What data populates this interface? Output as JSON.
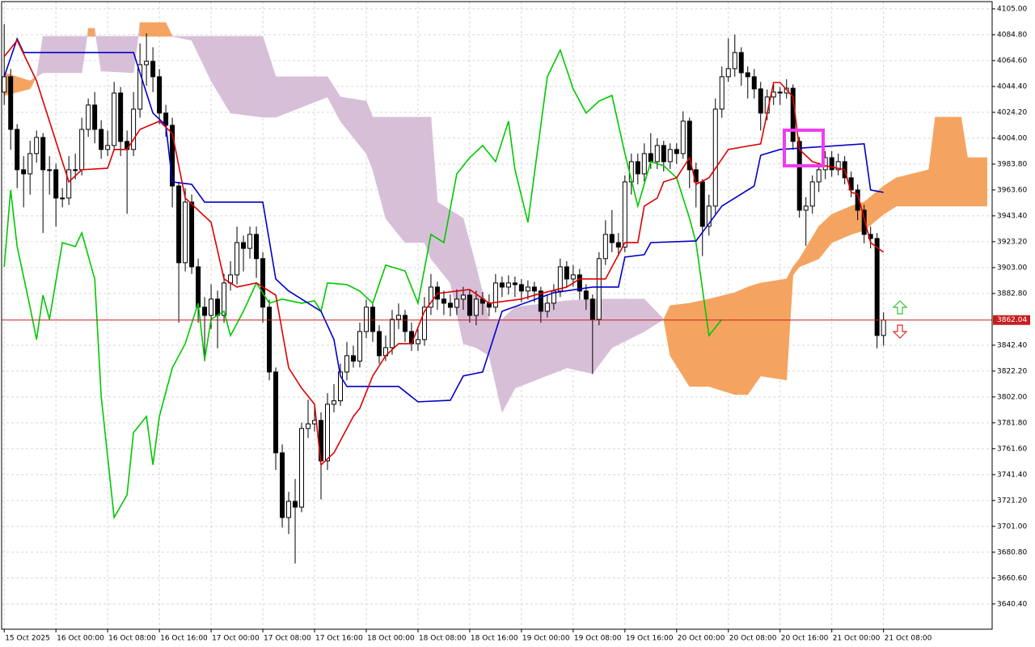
{
  "chart_data": {
    "type": "candlestick",
    "xlim": [
      -0.4,
      152.8
    ],
    "ylim": [
      3620.7,
      4111.9
    ],
    "grid": true,
    "bull_color": "#ffffff",
    "bear_color": "#000000",
    "xticks": [
      {
        "value": 0,
        "label": "15 Oct 2025"
      },
      {
        "value": 8,
        "label": "16 Oct 00:00"
      },
      {
        "value": 16,
        "label": "16 Oct 08:00"
      },
      {
        "value": 24,
        "label": "16 Oct 16:00"
      },
      {
        "value": 32,
        "label": "17 Oct 00:00"
      },
      {
        "value": 40,
        "label": "17 Oct 08:00"
      },
      {
        "value": 48,
        "label": "17 Oct 16:00"
      },
      {
        "value": 56,
        "label": "18 Oct 00:00"
      },
      {
        "value": 64,
        "label": "18 Oct 08:00"
      },
      {
        "value": 72,
        "label": "18 Oct 16:00"
      },
      {
        "value": 80,
        "label": "19 Oct 00:00"
      },
      {
        "value": 88,
        "label": "19 Oct 08:00"
      },
      {
        "value": 96,
        "label": "19 Oct 16:00"
      },
      {
        "value": 104,
        "label": "20 Oct 00:00"
      },
      {
        "value": 112,
        "label": "20 Oct 08:00"
      },
      {
        "value": 120,
        "label": "20 Oct 16:00"
      },
      {
        "value": 128,
        "label": "21 Oct 00:00"
      },
      {
        "value": 136,
        "label": "21 Oct 08:00"
      }
    ],
    "yticks": [
      {
        "value": 4105,
        "label": "4105.00"
      },
      {
        "value": 4084.8,
        "label": "4084.80"
      },
      {
        "value": 4064.6,
        "label": "4064.60"
      },
      {
        "value": 4044.4,
        "label": "4044.40"
      },
      {
        "value": 4024.2,
        "label": "4024.20"
      },
      {
        "value": 4004,
        "label": "4004.00"
      },
      {
        "value": 3983.8,
        "label": "3983.80"
      },
      {
        "value": 3963.6,
        "label": "3963.60"
      },
      {
        "value": 3943.4,
        "label": "3943.40"
      },
      {
        "value": 3923.2,
        "label": "3923.20"
      },
      {
        "value": 3903,
        "label": "3903.00"
      },
      {
        "value": 3882.8,
        "label": "3882.80"
      },
      {
        "value": 3842.4,
        "label": "3842.40"
      },
      {
        "value": 3822.2,
        "label": "3822.20"
      },
      {
        "value": 3802,
        "label": "3802.00"
      },
      {
        "value": 3781.8,
        "label": "3781.80"
      },
      {
        "value": 3761.6,
        "label": "3761.60"
      },
      {
        "value": 3741.4,
        "label": "3741.40"
      },
      {
        "value": 3721.2,
        "label": "3721.20"
      },
      {
        "value": 3701,
        "label": "3701.00"
      },
      {
        "value": 3680.8,
        "label": "3680.80"
      },
      {
        "value": 3660.6,
        "label": "3660.60"
      },
      {
        "value": 3640.4,
        "label": "3640.40"
      }
    ],
    "last_price": 3862.04,
    "last_price_color": "#c81e1e",
    "candles": {
      "open": [
        4040.0,
        4052.0,
        4010.9,
        3979.4,
        3976.2,
        3992.0,
        4004.6,
        3979.4,
        3979.4,
        3957.3,
        3957.3,
        3979.4,
        3979.4,
        4010.9,
        4029.9,
        4010.9,
        3995.2,
        3998.3,
        4039.3,
        4001.5,
        3995.2,
        4026.7,
        4061.4,
        4064.0,
        4052.0,
        4023.6,
        4014.1,
        3966.7,
        3906.8,
        3954.1,
        3903.6,
        3872.1,
        3865.7,
        3878.4,
        3865.7,
        3891.0,
        3897.3,
        3922.5,
        3918.0,
        3928.9,
        3910.0,
        3872.1,
        3821.5,
        3758.4,
        3707.9,
        3720.5,
        3716.0,
        3777.4,
        3781.0,
        3783.7,
        3752.1,
        3796.3,
        3799.0,
        3821.5,
        3834.2,
        3830.0,
        3853.1,
        3872.1,
        3853.1,
        3834.2,
        3840.5,
        3862.6,
        3865.7,
        3853.1,
        3843.6,
        3846.8,
        3872.1,
        3887.8,
        3878.4,
        3875.2,
        3872.0,
        3878.4,
        3881.5,
        3865.7,
        3878.4,
        3875.2,
        3872.1,
        3891.0,
        3887.8,
        3891.0,
        3889.7,
        3884.7,
        3887.8,
        3884.7,
        3868.9,
        3875.2,
        3884.7,
        3903.6,
        3894.1,
        3897.3,
        3884.7,
        3878.4,
        3862.6,
        3910.0,
        3928.9,
        3922.5,
        3919.0,
        3969.9,
        3985.7,
        3976.2,
        3992.0,
        3985.7,
        3998.3,
        3985.7,
        3995.2,
        3992.0,
        4017.3,
        3979.4,
        3969.9,
        3935.2,
        3951.0,
        4026.7,
        4052.0,
        4058.3,
        4070.9,
        4055.1,
        4052.0,
        4042.5,
        4023.6,
        4036.2,
        4040.0,
        4039.3,
        4043.0,
        4001.5,
        3947.8,
        3951.0,
        3969.9,
        3979.4,
        3988.8,
        3979.4,
        3985.7,
        3973.1,
        3963.6,
        3947.8,
        3928.9,
        3925.7,
        3850.0
      ],
      "high": [
        4093,
        4058,
        4015,
        3990,
        4002,
        4010,
        4008,
        3990,
        3984,
        3965,
        3990,
        3992,
        4020,
        4035,
        4040,
        4018,
        4010,
        4048,
        4044,
        4010,
        4040,
        4078,
        4086,
        4075,
        4058,
        4030,
        4020,
        3970,
        3965,
        3960,
        3910,
        3880,
        3890,
        3885,
        3898,
        3908,
        3935,
        3928,
        3935,
        3935,
        3915,
        3878,
        3825,
        3765,
        3728,
        3738,
        3782,
        3800,
        3795,
        3790,
        3805,
        3812,
        3828,
        3845,
        3842,
        3860,
        3878,
        3876,
        3858,
        3850,
        3870,
        3875,
        3870,
        3860,
        3855,
        3880,
        3898,
        3892,
        3885,
        3882,
        3886,
        3888,
        3886,
        3885,
        3884,
        3882,
        3898,
        3896,
        3897,
        3896,
        3894,
        3893,
        3892,
        3888,
        3882,
        3890,
        3910,
        3908,
        3905,
        3902,
        3890,
        3882,
        3915,
        3940,
        3948,
        3930,
        3975,
        3992,
        3992,
        4000,
        4008,
        4004,
        4002,
        4000,
        4000,
        4025,
        4020,
        3985,
        3972,
        3960,
        4035,
        4060,
        4082,
        4085,
        4075,
        4060,
        4058,
        4048,
        4042,
        4046,
        4044,
        4050,
        4046,
        4005,
        3958,
        3975,
        3985,
        3994,
        3994,
        3992,
        3990,
        3978,
        3968,
        3952,
        3935,
        3930,
        3868
      ],
      "low": [
        4030,
        3995,
        3965,
        3950,
        3960,
        3985,
        3930,
        3960,
        3935,
        3950,
        3952,
        3972,
        3975,
        4005,
        4000,
        3988,
        3990,
        3994,
        3990,
        3945,
        3990,
        4020,
        4045,
        4040,
        4015,
        4005,
        3950,
        3860,
        3900,
        3898,
        3860,
        3830,
        3855,
        3840,
        3860,
        3885,
        3890,
        3900,
        3910,
        3895,
        3860,
        3815,
        3745,
        3700,
        3695,
        3672,
        3712,
        3770,
        3775,
        3722,
        3745,
        3790,
        3795,
        3815,
        3825,
        3825,
        3848,
        3845,
        3828,
        3830,
        3835,
        3855,
        3845,
        3838,
        3838,
        3842,
        3866,
        3870,
        3866,
        3865,
        3866,
        3870,
        3860,
        3858,
        3866,
        3865,
        3868,
        3880,
        3882,
        3880,
        3876,
        3878,
        3876,
        3860,
        3864,
        3870,
        3880,
        3888,
        3888,
        3878,
        3870,
        3820,
        3858,
        3905,
        3915,
        3912,
        3915,
        3960,
        3968,
        3970,
        3980,
        3980,
        3978,
        3980,
        3984,
        3988,
        3965,
        3950,
        3912,
        3928,
        3945,
        4020,
        4048,
        4052,
        4045,
        4035,
        4035,
        4010,
        4018,
        4030,
        4030,
        4035,
        3995,
        3942,
        3920,
        3945,
        3962,
        3972,
        3974,
        3975,
        3968,
        3958,
        3940,
        3922,
        3918,
        3840,
        3842
      ],
      "close": [
        4052.0,
        4010.9,
        3979.4,
        3976.2,
        3992.0,
        4004.6,
        3979.4,
        3979.4,
        3957.3,
        3957.3,
        3979.4,
        3979.4,
        4010.9,
        4029.9,
        4010.9,
        3995.2,
        3998.3,
        4039.3,
        4001.5,
        3995.2,
        4026.7,
        4061.4,
        4064.0,
        4052.0,
        4023.6,
        4014.1,
        3966.7,
        3906.8,
        3954.1,
        3903.6,
        3872.1,
        3865.7,
        3878.4,
        3865.7,
        3891.0,
        3897.3,
        3922.5,
        3918.0,
        3928.9,
        3910.0,
        3872.1,
        3821.5,
        3758.4,
        3707.9,
        3720.5,
        3716.0,
        3777.4,
        3781.0,
        3783.7,
        3752.1,
        3796.3,
        3799.0,
        3821.5,
        3834.2,
        3830.0,
        3853.1,
        3872.1,
        3853.1,
        3834.2,
        3840.5,
        3862.6,
        3865.7,
        3853.1,
        3843.6,
        3846.8,
        3872.1,
        3887.8,
        3878.4,
        3875.2,
        3872.0,
        3878.4,
        3881.5,
        3865.7,
        3878.4,
        3875.2,
        3872.1,
        3891.0,
        3887.8,
        3891.0,
        3889.7,
        3884.7,
        3887.8,
        3884.7,
        3868.9,
        3875.2,
        3884.7,
        3903.6,
        3894.1,
        3897.3,
        3884.7,
        3878.4,
        3862.6,
        3910.0,
        3928.9,
        3922.5,
        3919.0,
        3969.9,
        3985.7,
        3976.2,
        3992.0,
        3985.7,
        3998.3,
        3985.7,
        3995.2,
        3992.0,
        4017.3,
        3979.4,
        3969.9,
        3935.2,
        3951.0,
        4026.7,
        4052.0,
        4058.3,
        4070.9,
        4055.1,
        4052.0,
        4042.5,
        4023.6,
        4036.2,
        4040.0,
        4039.3,
        4043.0,
        4001.5,
        3947.8,
        3951.0,
        3969.9,
        3979.4,
        3988.8,
        3979.4,
        3985.7,
        3973.1,
        3963.6,
        3947.8,
        3928.9,
        3925.7,
        3850.0,
        3862.04
      ]
    },
    "cloud": {
      "color_a": "#f4a460",
      "color_b": "#d8bfd8",
      "x": [
        0,
        4,
        5,
        6,
        12,
        13,
        14,
        15,
        20,
        21,
        25,
        26,
        29,
        32,
        35,
        40,
        42,
        50,
        52,
        56,
        57,
        59,
        62,
        65,
        66,
        67,
        69,
        71,
        73,
        75,
        77,
        79,
        87,
        91,
        94,
        99,
        102,
        103,
        106,
        109,
        113,
        115,
        117,
        121,
        122,
        123,
        126,
        128,
        131,
        133,
        136,
        138,
        143,
        144,
        148,
        149,
        152
      ],
      "span_a": [
        4055.1,
        4048.8,
        4052.0,
        4055.1,
        4055.1,
        4089.8,
        4089.8,
        4056.4,
        4055.1,
        4094.3,
        4094.3,
        4083.5,
        4080.4,
        4048.8,
        4023.6,
        4020.4,
        4020.4,
        4036.2,
        4017.3,
        3992.0,
        3979.4,
        3941.5,
        3922.5,
        3922.5,
        3909.9,
        3903.6,
        3891.0,
        3843.6,
        3840.5,
        3834.2,
        3790.0,
        3808.9,
        3824.7,
        3820.3,
        3840.5,
        3853.1,
        3862.6,
        3873.3,
        3875.2,
        3878.4,
        3883.4,
        3887.8,
        3891.0,
        3894.1,
        3903.6,
        3909.9,
        3935.2,
        3944.6,
        3951.0,
        3954.1,
        3966.7,
        3973.1,
        3979.4,
        4020.4,
        4020.4,
        3988.8,
        3988.8
      ],
      "span_b": [
        4037.4,
        4042.5,
        4052.0,
        4083.5,
        4083.5,
        4083.5,
        4083.5,
        4083.5,
        4083.5,
        4083.5,
        4083.5,
        4083.5,
        4083.5,
        4083.5,
        4083.5,
        4083.5,
        4052.0,
        4052.0,
        4036.2,
        4033.0,
        4020.4,
        4020.4,
        4020.4,
        4020.4,
        4020.4,
        3954.1,
        3947.8,
        3941.5,
        3903.6,
        3862.6,
        3862.6,
        3872.1,
        3877.1,
        3878.4,
        3878.4,
        3878.4,
        3862.6,
        3834.2,
        3810.2,
        3810.2,
        3803.9,
        3803.9,
        3818.4,
        3815.2,
        3897.3,
        3903.6,
        3909.9,
        3922.5,
        3928.9,
        3932.0,
        3944.6,
        3951.0,
        3951.0,
        3951.0,
        3951.0,
        3951.0,
        3951.0
      ]
    },
    "series": [
      {
        "color": "#00c800",
        "x": [
          0,
          1,
          2,
          4,
          5,
          6,
          7,
          9,
          11,
          12,
          14,
          15,
          17,
          19,
          20,
          22,
          23,
          24,
          26,
          28,
          30,
          31,
          32,
          34,
          35,
          37,
          39,
          41,
          43,
          46,
          48,
          49,
          50,
          53,
          55,
          57,
          59,
          62,
          64,
          66,
          68,
          70,
          72,
          74,
          76,
          78,
          79,
          81,
          84,
          86,
          88,
          90,
          92,
          94,
          96,
          98,
          100,
          102,
          104,
          106,
          107,
          109,
          111
        ],
        "values": [
          3903.6,
          3963.6,
          3919.4,
          3872.1,
          3846.8,
          3881.5,
          3862.6,
          3922.5,
          3919.4,
          3930.1,
          3894.1,
          3802.6,
          3707.9,
          3725.6,
          3774.2,
          3786.8,
          3749.0,
          3786.8,
          3824.7,
          3843.6,
          3875.2,
          3831.0,
          3862.6,
          3868.9,
          3849.9,
          3868.9,
          3891.0,
          3875.2,
          3878.4,
          3875.2,
          3877.1,
          3868.9,
          3891.0,
          3889.7,
          3884.7,
          3875.2,
          3904.9,
          3900.4,
          3875.2,
          3928.9,
          3922.5,
          3976.2,
          3988.8,
          3998.3,
          3985.7,
          4017.3,
          3979.4,
          3938.3,
          4052.0,
          4072.8,
          4042.5,
          4023.6,
          4033.0,
          4037.4,
          3992.0,
          3951.0,
          3985.7,
          3982.5,
          3973.1,
          3941.5,
          3922.5,
          3849.9,
          3862.6
        ]
      },
      {
        "color": "#0000c8",
        "x": [
          0,
          2,
          3,
          20,
          21,
          23,
          25,
          26,
          29,
          31,
          40,
          42,
          44,
          49,
          51,
          52,
          53,
          61,
          64,
          69,
          71,
          74,
          77,
          85,
          91,
          95,
          96,
          99,
          100,
          107,
          111,
          116,
          117,
          120,
          133,
          134,
          136
        ],
        "values": [
          4052.0,
          4081.6,
          4070.9,
          4070.9,
          4055.1,
          4023.6,
          4014.1,
          3969.9,
          3968.0,
          3954.1,
          3954.1,
          3894.1,
          3884.7,
          3868.9,
          3846.8,
          3818.4,
          3810.2,
          3810.2,
          3798.2,
          3799.4,
          3818.4,
          3821.5,
          3868.9,
          3883.4,
          3887.8,
          3887.8,
          3911.2,
          3913.1,
          3922.5,
          3923.8,
          3951.0,
          3966.7,
          3990.7,
          3995.2,
          3999.6,
          3963.6,
          3961.7
        ]
      },
      {
        "color": "#dc0000",
        "x": [
          0,
          2,
          5,
          7,
          10,
          12,
          16,
          17,
          19,
          21,
          24,
          26,
          28,
          32,
          34,
          36,
          39,
          42,
          44,
          46,
          48,
          49,
          51,
          54,
          55,
          57,
          59,
          61,
          63,
          65,
          67,
          72,
          75,
          80,
          82,
          87,
          89,
          93,
          96,
          98,
          99,
          101,
          102,
          104,
          106,
          107,
          109,
          112,
          114,
          117,
          119,
          120,
          122,
          123,
          125,
          127,
          130,
          131,
          132,
          134,
          136
        ],
        "values": [
          4067.7,
          4080.4,
          4048.8,
          4017.3,
          3969.9,
          3979.4,
          3980.6,
          3995.2,
          3995.2,
          4010.9,
          4017.3,
          4007.8,
          3957.3,
          3938.3,
          3894.1,
          3887.8,
          3891.0,
          3881.5,
          3824.7,
          3808.9,
          3796.3,
          3749.0,
          3758.4,
          3786.8,
          3793.1,
          3818.4,
          3834.2,
          3843.6,
          3843.6,
          3868.9,
          3882.8,
          3885.9,
          3875.2,
          3878.4,
          3881.5,
          3887.8,
          3894.1,
          3894.1,
          3922.5,
          3922.5,
          3951.0,
          3957.3,
          3969.9,
          3973.1,
          3988.8,
          3968.0,
          3973.1,
          3995.2,
          3997.0,
          3999.6,
          4047.5,
          4047.5,
          4036.2,
          3995.2,
          3985.7,
          3982.5,
          3979.4,
          3961.7,
          3960.4,
          3922.5,
          3915.0
        ]
      }
    ]
  }
}
